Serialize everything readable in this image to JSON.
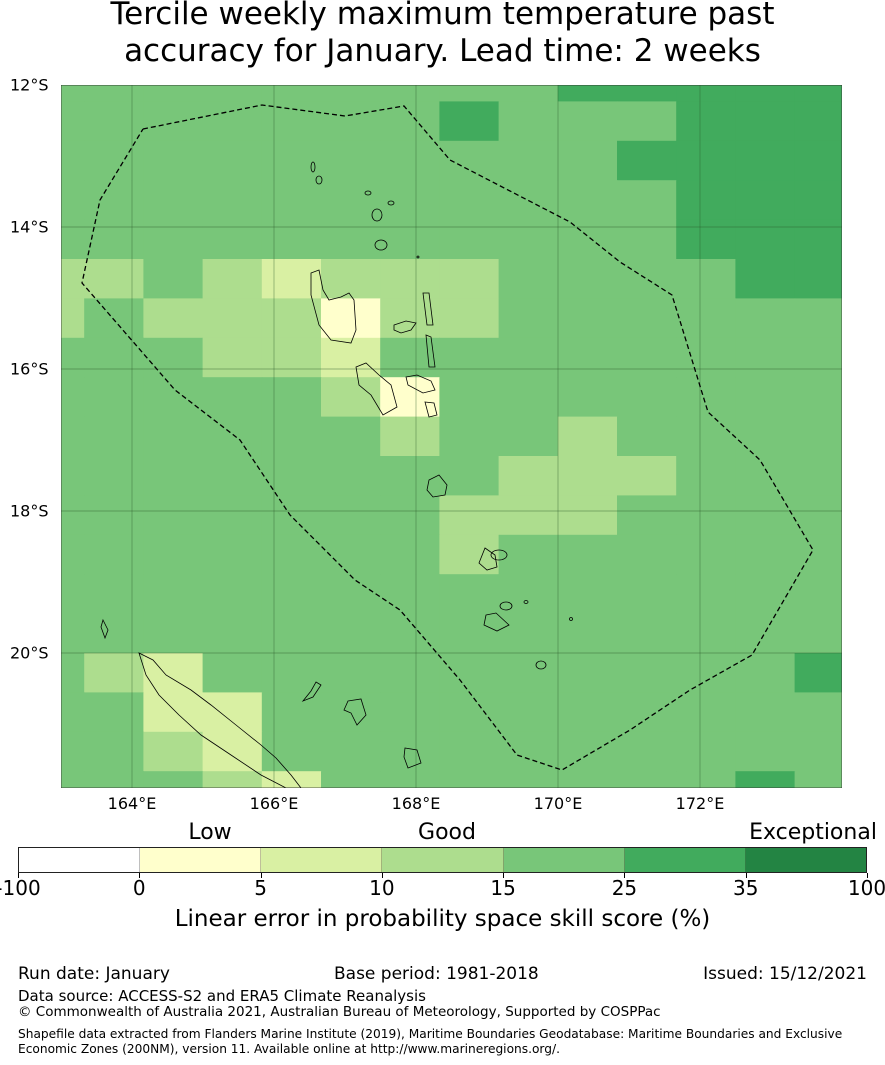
{
  "title_line1": "Tercile weekly maximum temperature past",
  "title_line2": "accuracy for January. Lead time: 2 weeks",
  "chart_data": {
    "type": "heatmap",
    "title": "Tercile weekly maximum temperature past accuracy for January. Lead time: 2 weeks",
    "lon_ticks": [
      "164°E",
      "166°E",
      "168°E",
      "170°E",
      "172°E"
    ],
    "lat_ticks": [
      "12°S",
      "14°S",
      "16°S",
      "18°S",
      "20°S"
    ],
    "lon_range": [
      163,
      174
    ],
    "lat_range": [
      -21.9,
      -12
    ],
    "grid_note": "category index per cell (rows north to south, cols west to east); index refers to colorbar bins",
    "grid": [
      [
        3,
        3,
        3,
        3,
        3,
        3,
        3,
        3,
        3,
        4,
        4,
        4,
        4,
        4
      ],
      [
        3,
        3,
        3,
        3,
        3,
        3,
        3,
        4,
        3,
        3,
        3,
        4,
        4,
        4
      ],
      [
        3,
        3,
        3,
        3,
        3,
        3,
        3,
        3,
        3,
        3,
        4,
        4,
        4,
        4
      ],
      [
        3,
        3,
        3,
        3,
        3,
        3,
        3,
        3,
        3,
        3,
        3,
        4,
        4,
        4
      ],
      [
        3,
        3,
        3,
        3,
        3,
        3,
        3,
        3,
        3,
        3,
        3,
        4,
        4,
        4
      ],
      [
        2,
        2,
        3,
        2,
        1,
        2,
        2,
        2,
        3,
        3,
        3,
        3,
        4,
        4
      ],
      [
        2,
        3,
        2,
        2,
        2,
        0,
        2,
        2,
        3,
        3,
        3,
        3,
        3,
        3
      ],
      [
        3,
        3,
        3,
        2,
        2,
        1,
        3,
        3,
        3,
        3,
        3,
        3,
        3,
        3
      ],
      [
        3,
        3,
        3,
        3,
        3,
        2,
        0,
        3,
        3,
        3,
        3,
        3,
        3,
        3
      ],
      [
        3,
        3,
        3,
        3,
        3,
        3,
        2,
        3,
        3,
        2,
        3,
        3,
        3,
        3
      ],
      [
        3,
        3,
        3,
        3,
        3,
        3,
        3,
        3,
        2,
        2,
        2,
        3,
        3,
        3
      ],
      [
        3,
        3,
        3,
        3,
        3,
        3,
        3,
        2,
        2,
        2,
        3,
        3,
        3,
        3
      ],
      [
        3,
        3,
        3,
        3,
        3,
        3,
        3,
        2,
        3,
        3,
        3,
        3,
        3,
        3
      ],
      [
        3,
        3,
        3,
        3,
        3,
        3,
        3,
        3,
        3,
        3,
        3,
        3,
        3,
        3
      ],
      [
        3,
        3,
        3,
        3,
        3,
        3,
        3,
        3,
        3,
        3,
        3,
        3,
        3,
        3
      ],
      [
        3,
        2,
        1,
        3,
        3,
        3,
        3,
        3,
        3,
        3,
        3,
        3,
        3,
        4
      ],
      [
        3,
        3,
        1,
        1,
        3,
        3,
        3,
        3,
        3,
        3,
        3,
        3,
        3,
        3
      ],
      [
        3,
        3,
        2,
        1,
        3,
        3,
        3,
        3,
        3,
        3,
        3,
        3,
        3,
        3
      ],
      [
        3,
        3,
        3,
        2,
        1,
        3,
        3,
        3,
        3,
        3,
        3,
        3,
        4,
        3
      ]
    ],
    "colorbar": {
      "bins": [
        "-100–0",
        "0–5",
        "5–10",
        "10–15",
        "15–25",
        "25–35",
        "35–100"
      ],
      "colors": [
        "#ffffff",
        "#ffffcc",
        "#d9f0a3",
        "#addd8e",
        "#78c679",
        "#41ab5d",
        "#238443"
      ],
      "ticks": [
        "-100",
        "0",
        "5",
        "10",
        "15",
        "25",
        "35",
        "100"
      ],
      "category_labels": [
        "Low",
        "Good",
        "Exceptional"
      ],
      "label": "Linear error in probability space skill score (%)"
    }
  },
  "footer": {
    "run_date": "Run date: January",
    "base_period": "Base period: 1981-2018",
    "issued": "Issued: 15/12/2021",
    "data_source": "Data source: ACCESS-S2 and ERA5 Climate Reanalysis",
    "copyright": "© Commonwealth of Australia 2021, Australian Bureau of Meteorology, Supported by COSPPac",
    "shapefile_line1": "Shapefile data extracted from Flanders Marine Institute (2019), Maritime Boundaries Geodatabase: Maritime Boundaries and Exclusive",
    "shapefile_line2": "Economic Zones (200NM), version 11. Available online at http://www.marineregions.org/."
  }
}
